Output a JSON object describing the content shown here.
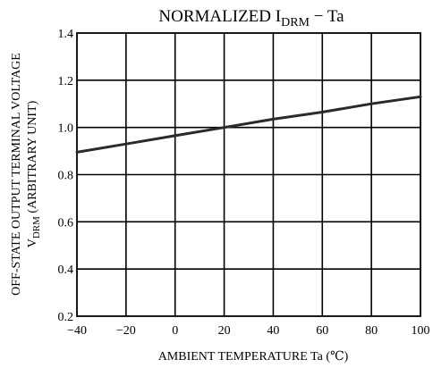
{
  "chart_data": {
    "type": "line",
    "title": "NORMALIZED I",
    "title_sub": "DRM",
    "title_suffix": " − Ta",
    "xlabel": "AMBIENT TEMPERATURE   Ta   (℃)",
    "ylabel_line1": "OFF-STATE OUTPUT TERMINAL VOLTAGE",
    "ylabel_line2": "V",
    "ylabel_line2_sub": "DRM",
    "ylabel_line2_suffix": "   (ARBITRARY UNIT)",
    "xlim": [
      -40,
      100
    ],
    "ylim": [
      0.2,
      1.4
    ],
    "x_ticks": [
      "−40",
      "−20",
      "0",
      "20",
      "40",
      "60",
      "80",
      "100"
    ],
    "y_ticks": [
      "1.4",
      "1.2",
      "1.0",
      "0.8",
      "0.6",
      "0.4",
      "0.2"
    ],
    "grid": true,
    "series": [
      {
        "x": [
          -40,
          -20,
          0,
          20,
          40,
          60,
          80,
          100
        ],
        "values": [
          0.895,
          0.93,
          0.965,
          1.0,
          1.035,
          1.065,
          1.1,
          1.13
        ]
      }
    ]
  }
}
